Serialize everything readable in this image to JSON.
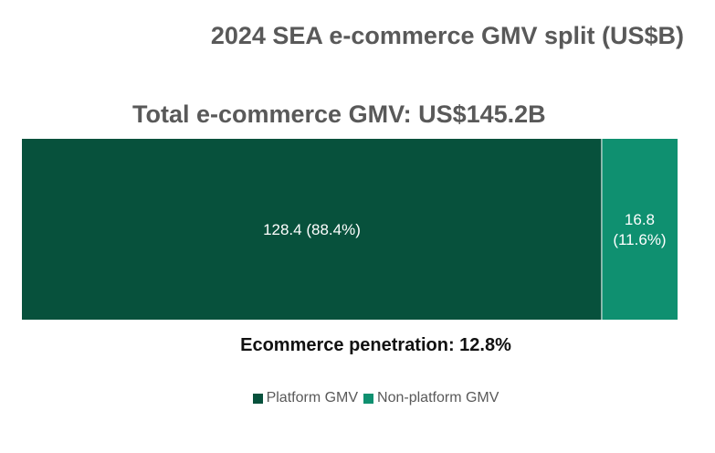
{
  "title": "2024 SEA e-commerce GMV split (US$B)",
  "subtitle": "Total e-commerce GMV: US$145.2B",
  "footer": "Ecommerce penetration: 12.8%",
  "colors": {
    "platform": "#07513c",
    "non_platform": "#0f9070",
    "title_text": "#595959",
    "bar_label": "#ffffff"
  },
  "chart_data": {
    "type": "bar",
    "orientation": "horizontal-stacked-100",
    "title": "2024 SEA e-commerce GMV split (US$B)",
    "subtitle": "Total e-commerce GMV: US$145.2B",
    "total": 145.2,
    "series": [
      {
        "name": "Platform GMV",
        "value": 128.4,
        "percent": 88.4,
        "label_lines": [
          "128.4 (88.4%)"
        ],
        "color": "#07513c"
      },
      {
        "name": "Non-platform GMV",
        "value": 16.8,
        "percent": 11.6,
        "label_lines": [
          "16.8",
          "(11.6%)"
        ],
        "color": "#0f9070"
      }
    ],
    "legend_position": "bottom",
    "grid": false
  }
}
